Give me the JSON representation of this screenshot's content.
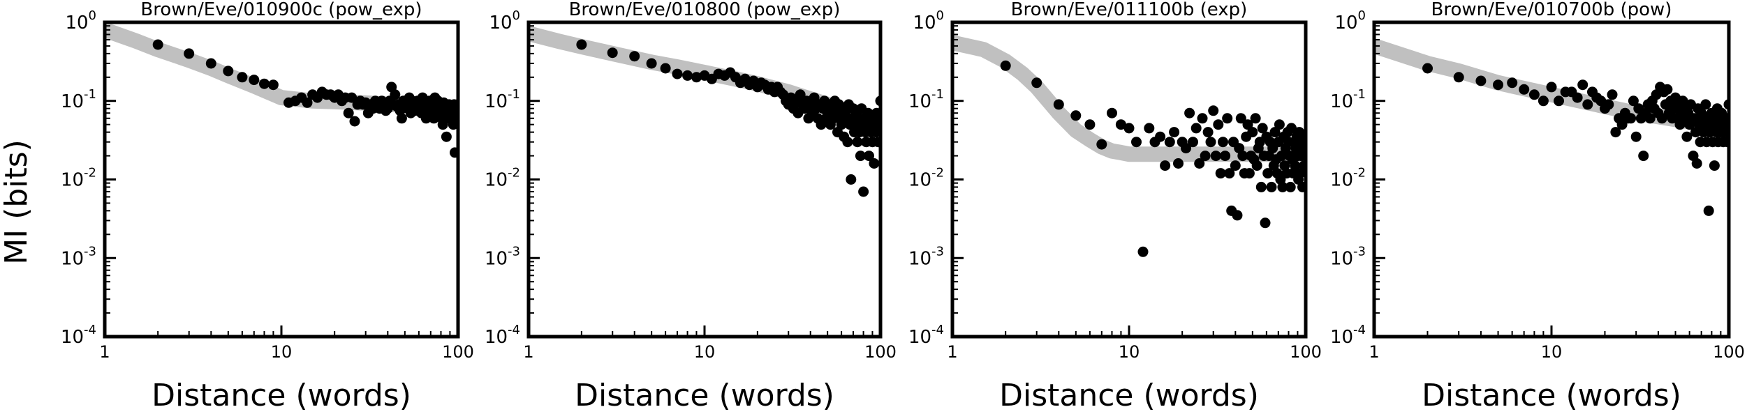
{
  "figure": {
    "ylabel": "MI (bits)"
  },
  "chart_data": [
    {
      "type": "scatter",
      "title": "Brown/Eve/010900c (pow_exp)",
      "xlabel": "Distance (words)",
      "ylabel": "MI (bits)",
      "xscale": "log",
      "yscale": "log",
      "xlim": [
        1,
        100
      ],
      "ylim": [
        0.0001,
        1
      ],
      "xticks": [
        "1",
        "10",
        "100"
      ],
      "yticks": [
        "10^-4",
        "10^-3",
        "10^-2",
        "10^-1",
        "10^0"
      ],
      "grid": false,
      "fit_color": "#c0c0c0",
      "point_color": "#000000",
      "fit": {
        "x": [
          1,
          1.5,
          2,
          3,
          4,
          5,
          7,
          10,
          15,
          20,
          30,
          50,
          70,
          100
        ],
        "y": [
          0.8,
          0.58,
          0.45,
          0.33,
          0.26,
          0.21,
          0.155,
          0.11,
          0.1,
          0.098,
          0.094,
          0.088,
          0.084,
          0.08
        ]
      },
      "points": {
        "x": [
          2,
          3,
          4,
          5,
          6,
          7,
          8,
          9,
          11,
          12,
          13,
          14,
          15,
          16,
          17,
          18,
          19,
          20,
          21,
          22,
          23,
          24,
          25,
          26,
          27,
          28,
          29,
          30,
          31,
          32,
          33,
          34,
          35,
          36,
          37,
          38,
          39,
          40,
          41,
          42,
          43,
          44,
          45,
          46,
          47,
          48,
          49,
          50,
          51,
          52,
          53,
          54,
          55,
          56,
          57,
          58,
          59,
          60,
          61,
          62,
          63,
          64,
          65,
          66,
          67,
          68,
          69,
          70,
          71,
          72,
          73,
          74,
          75,
          76,
          77,
          78,
          79,
          80,
          81,
          82,
          83,
          84,
          85,
          86,
          87,
          88,
          89,
          90,
          91,
          92,
          93,
          94,
          95,
          96,
          97,
          98,
          99,
          100
        ],
        "y": [
          0.52,
          0.4,
          0.3,
          0.24,
          0.2,
          0.185,
          0.165,
          0.16,
          0.095,
          0.1,
          0.11,
          0.095,
          0.12,
          0.11,
          0.13,
          0.12,
          0.12,
          0.11,
          0.12,
          0.1,
          0.11,
          0.07,
          0.11,
          0.055,
          0.09,
          0.1,
          0.09,
          0.095,
          0.07,
          0.09,
          0.08,
          0.1,
          0.085,
          0.08,
          0.1,
          0.09,
          0.075,
          0.08,
          0.1,
          0.15,
          0.09,
          0.12,
          0.085,
          0.09,
          0.075,
          0.06,
          0.1,
          0.09,
          0.085,
          0.08,
          0.11,
          0.07,
          0.1,
          0.09,
          0.075,
          0.08,
          0.1,
          0.085,
          0.095,
          0.07,
          0.11,
          0.08,
          0.09,
          0.06,
          0.09,
          0.07,
          0.1,
          0.075,
          0.085,
          0.09,
          0.06,
          0.11,
          0.08,
          0.07,
          0.1,
          0.065,
          0.09,
          0.08,
          0.06,
          0.05,
          0.095,
          0.07,
          0.08,
          0.035,
          0.085,
          0.06,
          0.09,
          0.07,
          0.075,
          0.08,
          0.06,
          0.05,
          0.09,
          0.022,
          0.07,
          0.08,
          0.065,
          0.09
        ]
      }
    },
    {
      "type": "scatter",
      "title": "Brown/Eve/010800 (pow_exp)",
      "xlabel": "Distance (words)",
      "xscale": "log",
      "yscale": "log",
      "xlim": [
        1,
        100
      ],
      "ylim": [
        0.0001,
        1
      ],
      "xticks": [
        "1",
        "10",
        "100"
      ],
      "yticks": [
        "10^-4",
        "10^-3",
        "10^-2",
        "10^-1",
        "10^0"
      ],
      "grid": false,
      "fit_color": "#c0c0c0",
      "point_color": "#000000",
      "fit": {
        "x": [
          1,
          1.5,
          2,
          3,
          5,
          7,
          10,
          15,
          20,
          30,
          50,
          70,
          100
        ],
        "y": [
          0.72,
          0.57,
          0.49,
          0.4,
          0.31,
          0.27,
          0.23,
          0.19,
          0.165,
          0.13,
          0.09,
          0.07,
          0.055
        ]
      },
      "points": {
        "x": [
          2,
          3,
          4,
          5,
          6,
          7,
          8,
          9,
          10,
          11,
          12,
          13,
          14,
          15,
          16,
          17,
          18,
          19,
          20,
          21,
          22,
          23,
          24,
          25,
          26,
          27,
          28,
          29,
          30,
          31,
          32,
          33,
          34,
          35,
          36,
          37,
          38,
          39,
          40,
          41,
          42,
          43,
          44,
          45,
          46,
          47,
          48,
          49,
          50,
          51,
          52,
          53,
          54,
          55,
          56,
          57,
          58,
          59,
          60,
          61,
          62,
          63,
          64,
          65,
          66,
          67,
          68,
          69,
          70,
          71,
          72,
          73,
          74,
          75,
          76,
          77,
          78,
          79,
          80,
          81,
          82,
          83,
          84,
          85,
          86,
          87,
          88,
          89,
          90,
          91,
          92,
          93,
          94,
          95,
          96,
          97,
          98,
          99,
          100
        ],
        "y": [
          0.52,
          0.41,
          0.37,
          0.3,
          0.26,
          0.22,
          0.21,
          0.2,
          0.21,
          0.19,
          0.22,
          0.21,
          0.23,
          0.2,
          0.17,
          0.19,
          0.16,
          0.18,
          0.15,
          0.17,
          0.16,
          0.14,
          0.15,
          0.13,
          0.15,
          0.13,
          0.12,
          0.1,
          0.09,
          0.11,
          0.08,
          0.1,
          0.07,
          0.12,
          0.09,
          0.08,
          0.1,
          0.06,
          0.09,
          0.07,
          0.11,
          0.08,
          0.06,
          0.09,
          0.05,
          0.08,
          0.1,
          0.06,
          0.07,
          0.09,
          0.05,
          0.08,
          0.06,
          0.1,
          0.07,
          0.04,
          0.09,
          0.06,
          0.05,
          0.08,
          0.035,
          0.07,
          0.06,
          0.03,
          0.09,
          0.05,
          0.01,
          0.06,
          0.08,
          0.04,
          0.05,
          0.07,
          0.03,
          0.06,
          0.04,
          0.02,
          0.08,
          0.05,
          0.007,
          0.06,
          0.04,
          0.03,
          0.05,
          0.07,
          0.02,
          0.06,
          0.04,
          0.05,
          0.03,
          0.06,
          0.016,
          0.05,
          0.04,
          0.07,
          0.05,
          0.03,
          0.06,
          0.05,
          0.1
        ]
      }
    },
    {
      "type": "scatter",
      "title": "Brown/Eve/011100b (exp)",
      "xlabel": "Distance (words)",
      "xscale": "log",
      "yscale": "log",
      "xlim": [
        1,
        100
      ],
      "ylim": [
        0.0001,
        1
      ],
      "xticks": [
        "1",
        "10",
        "100"
      ],
      "yticks": [
        "10^-4",
        "10^-3",
        "10^-2",
        "10^-1",
        "10^0"
      ],
      "grid": false,
      "fit_color": "#c0c0c0",
      "point_color": "#000000",
      "fit": {
        "x": [
          1,
          1.5,
          2,
          2.5,
          3,
          4,
          5,
          6,
          7,
          8,
          9,
          10,
          12,
          15,
          20,
          30,
          50,
          100
        ],
        "y": [
          0.55,
          0.45,
          0.32,
          0.22,
          0.15,
          0.07,
          0.042,
          0.032,
          0.026,
          0.023,
          0.022,
          0.021,
          0.021,
          0.021,
          0.021,
          0.021,
          0.021,
          0.021
        ]
      },
      "points": {
        "x": [
          2,
          3,
          4,
          5,
          6,
          7,
          8,
          9,
          10,
          11,
          12,
          13,
          14,
          15,
          16,
          17,
          18,
          19,
          20,
          21,
          22,
          23,
          24,
          25,
          26,
          27,
          28,
          29,
          30,
          31,
          32,
          33,
          34,
          35,
          36,
          37,
          38,
          39,
          40,
          41,
          42,
          43,
          44,
          45,
          46,
          47,
          48,
          49,
          50,
          51,
          52,
          53,
          54,
          55,
          56,
          57,
          58,
          59,
          60,
          61,
          62,
          63,
          64,
          65,
          66,
          67,
          68,
          69,
          70,
          71,
          72,
          73,
          74,
          75,
          76,
          77,
          78,
          79,
          80,
          81,
          82,
          83,
          84,
          85,
          86,
          87,
          88,
          89,
          90,
          91,
          92,
          93,
          94,
          95,
          96,
          97,
          98,
          99,
          100
        ],
        "y": [
          0.28,
          0.17,
          0.09,
          0.065,
          0.05,
          0.028,
          0.07,
          0.05,
          0.045,
          0.03,
          0.0012,
          0.045,
          0.03,
          0.035,
          0.015,
          0.03,
          0.04,
          0.016,
          0.03,
          0.025,
          0.07,
          0.03,
          0.045,
          0.016,
          0.06,
          0.02,
          0.04,
          0.03,
          0.075,
          0.02,
          0.05,
          0.012,
          0.03,
          0.02,
          0.06,
          0.012,
          0.004,
          0.03,
          0.015,
          0.0035,
          0.025,
          0.06,
          0.02,
          0.012,
          0.035,
          0.05,
          0.012,
          0.02,
          0.04,
          0.018,
          0.06,
          0.015,
          0.025,
          0.03,
          0.008,
          0.045,
          0.02,
          0.0028,
          0.035,
          0.012,
          0.02,
          0.03,
          0.008,
          0.025,
          0.015,
          0.04,
          0.018,
          0.012,
          0.03,
          0.05,
          0.01,
          0.02,
          0.008,
          0.035,
          0.015,
          0.025,
          0.012,
          0.04,
          0.03,
          0.02,
          0.008,
          0.045,
          0.018,
          0.012,
          0.03,
          0.015,
          0.025,
          0.035,
          0.02,
          0.01,
          0.04,
          0.012,
          0.02,
          0.03,
          0.008,
          0.025,
          0.015,
          0.035,
          0.02
        ]
      }
    },
    {
      "type": "scatter",
      "title": "Brown/Eve/010700b (pow)",
      "xlabel": "Distance (words)",
      "xscale": "log",
      "yscale": "log",
      "xlim": [
        1,
        100
      ],
      "ylim": [
        0.0001,
        1
      ],
      "xticks": [
        "1",
        "10",
        "100"
      ],
      "yticks": [
        "10^-4",
        "10^-3",
        "10^-2",
        "10^-1",
        "10^0"
      ],
      "grid": false,
      "fit_color": "#c0c0c0",
      "point_color": "#000000",
      "fit": {
        "x": [
          1,
          2,
          3,
          5,
          10,
          20,
          30,
          50,
          100
        ],
        "y": [
          0.5,
          0.3,
          0.24,
          0.17,
          0.12,
          0.085,
          0.07,
          0.058,
          0.045
        ]
      },
      "points": {
        "x": [
          2,
          3,
          4,
          5,
          6,
          7,
          8,
          9,
          10,
          11,
          12,
          13,
          14,
          15,
          16,
          17,
          18,
          19,
          20,
          21,
          22,
          23,
          24,
          25,
          26,
          27,
          28,
          29,
          30,
          31,
          32,
          33,
          34,
          35,
          36,
          37,
          38,
          39,
          40,
          41,
          42,
          43,
          44,
          45,
          46,
          47,
          48,
          49,
          50,
          51,
          52,
          53,
          54,
          55,
          56,
          57,
          58,
          59,
          60,
          61,
          62,
          63,
          64,
          65,
          66,
          67,
          68,
          69,
          70,
          71,
          72,
          73,
          74,
          75,
          76,
          77,
          78,
          79,
          80,
          81,
          82,
          83,
          84,
          85,
          86,
          87,
          88,
          89,
          90,
          91,
          92,
          93,
          94,
          95,
          96,
          97,
          98,
          99,
          100
        ],
        "y": [
          0.26,
          0.2,
          0.18,
          0.16,
          0.17,
          0.14,
          0.12,
          0.1,
          0.15,
          0.1,
          0.13,
          0.13,
          0.11,
          0.16,
          0.09,
          0.13,
          0.11,
          0.1,
          0.08,
          0.09,
          0.12,
          0.04,
          0.06,
          0.05,
          0.07,
          0.06,
          0.06,
          0.1,
          0.035,
          0.08,
          0.06,
          0.02,
          0.07,
          0.09,
          0.06,
          0.1,
          0.08,
          0.12,
          0.07,
          0.15,
          0.06,
          0.13,
          0.09,
          0.14,
          0.07,
          0.1,
          0.06,
          0.08,
          0.11,
          0.06,
          0.09,
          0.05,
          0.07,
          0.1,
          0.06,
          0.08,
          0.035,
          0.07,
          0.05,
          0.09,
          0.06,
          0.02,
          0.06,
          0.04,
          0.016,
          0.08,
          0.05,
          0.03,
          0.07,
          0.06,
          0.04,
          0.05,
          0.09,
          0.03,
          0.06,
          0.004,
          0.04,
          0.05,
          0.07,
          0.03,
          0.06,
          0.015,
          0.05,
          0.04,
          0.08,
          0.03,
          0.06,
          0.05,
          0.04,
          0.07,
          0.05,
          0.03,
          0.06,
          0.04,
          0.05,
          0.06,
          0.03,
          0.05,
          0.09
        ]
      }
    }
  ]
}
